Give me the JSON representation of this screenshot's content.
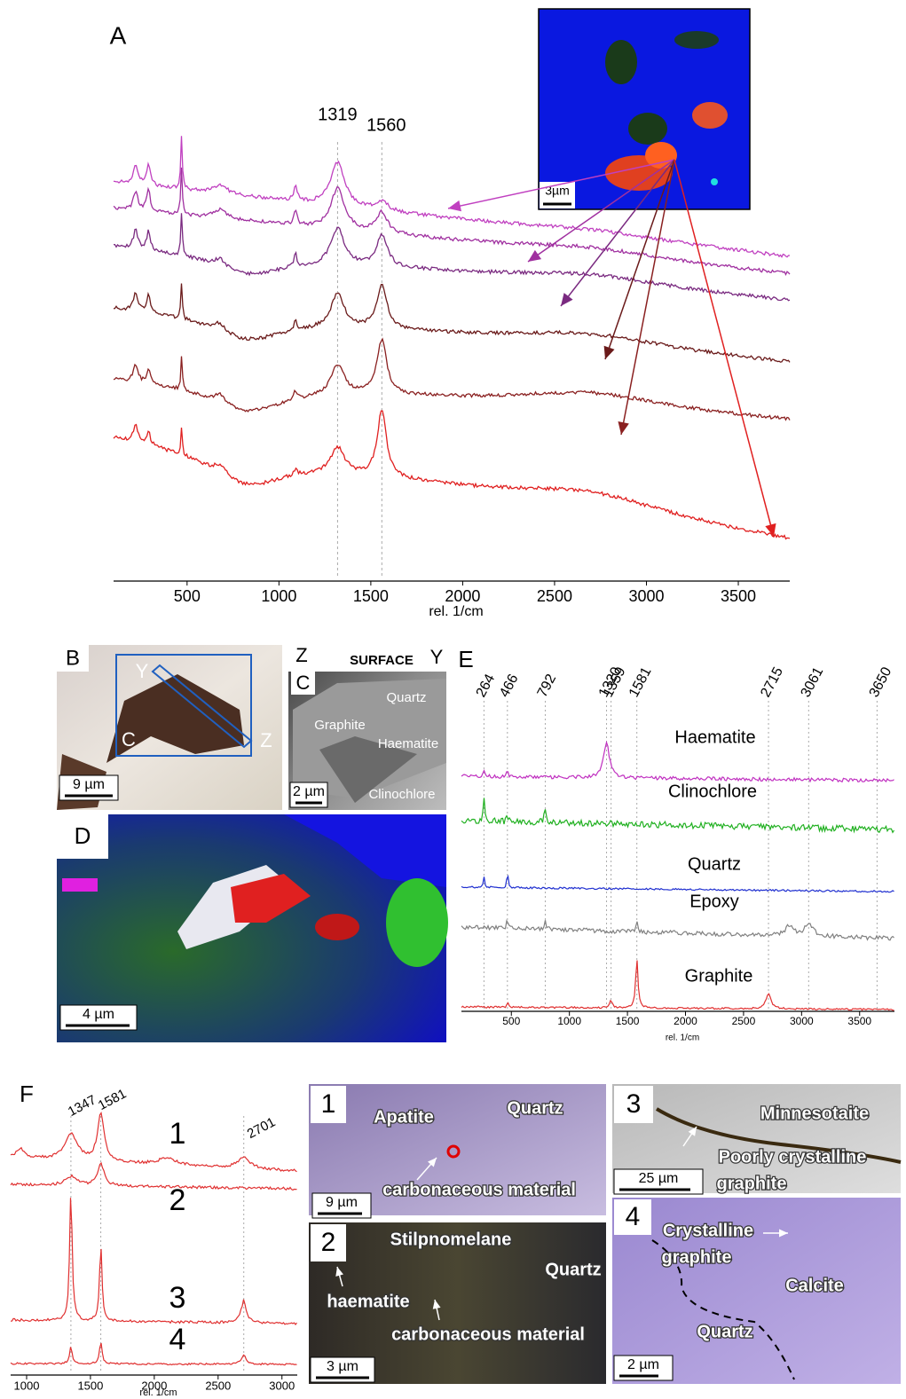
{
  "panel_a": {
    "label": "A",
    "xlim": [
      100,
      3780
    ],
    "xticks": [
      500,
      1000,
      1500,
      2000,
      2500,
      3000,
      3500
    ],
    "x_label": "rel. 1/cm",
    "peaks": [
      1319,
      1560
    ],
    "scale_bar": "3µm"
  },
  "panel_b": {
    "label": "B",
    "markers": [
      "Y",
      "C",
      "Z"
    ],
    "scale_bar": "9 µm"
  },
  "panel_c": {
    "label": "C",
    "top_labels": [
      "Z",
      "SURFACE",
      "Y"
    ],
    "minerals": [
      "Quartz",
      "Graphite",
      "Haematite",
      "Clinochlore"
    ],
    "scale_bar": "2 µm"
  },
  "panel_d": {
    "label": "D",
    "scale_bar": "4 µm"
  },
  "panel_e": {
    "label": "E",
    "xlim": [
      70,
      3800
    ],
    "xticks": [
      500,
      1000,
      1500,
      2000,
      2500,
      3000,
      3500
    ],
    "x_label": "rel. 1/cm",
    "peaks": [
      264,
      466,
      792,
      1320,
      1359,
      1581,
      2715,
      3061,
      3650
    ],
    "spectra": [
      "Haematite",
      "Clinochlore",
      "Quartz",
      "Epoxy",
      "Graphite"
    ]
  },
  "panel_f": {
    "label": "F",
    "xlim": [
      875,
      3120
    ],
    "xticks": [
      1000,
      1500,
      2000,
      2500,
      3000
    ],
    "x_label": "rel. 1/cm",
    "peaks": [
      1347,
      1581,
      2701
    ],
    "spectra": [
      "1",
      "2",
      "3",
      "4"
    ],
    "images": [
      {
        "number": "1",
        "labels": [
          [
            "Apatite"
          ],
          [
            "Quartz"
          ],
          [
            "carbonaceous material"
          ]
        ],
        "scale_bar": "9 µm"
      },
      {
        "number": "2",
        "labels": [
          [
            "Stilpnomelane"
          ],
          [
            "Quartz"
          ],
          [
            "haematite"
          ],
          [
            "carbonaceous material"
          ]
        ],
        "scale_bar": "3 µm"
      },
      {
        "number": "3",
        "labels": [
          [
            "Minnesotaite"
          ],
          [
            "Poorly crystalline",
            "graphite"
          ]
        ],
        "scale_bar": "25 µm"
      },
      {
        "number": "4",
        "labels": [
          [
            "Crystalline",
            "graphite"
          ],
          [
            "Calcite"
          ],
          [
            "Quartz"
          ]
        ],
        "scale_bar": "2 µm"
      }
    ]
  }
}
